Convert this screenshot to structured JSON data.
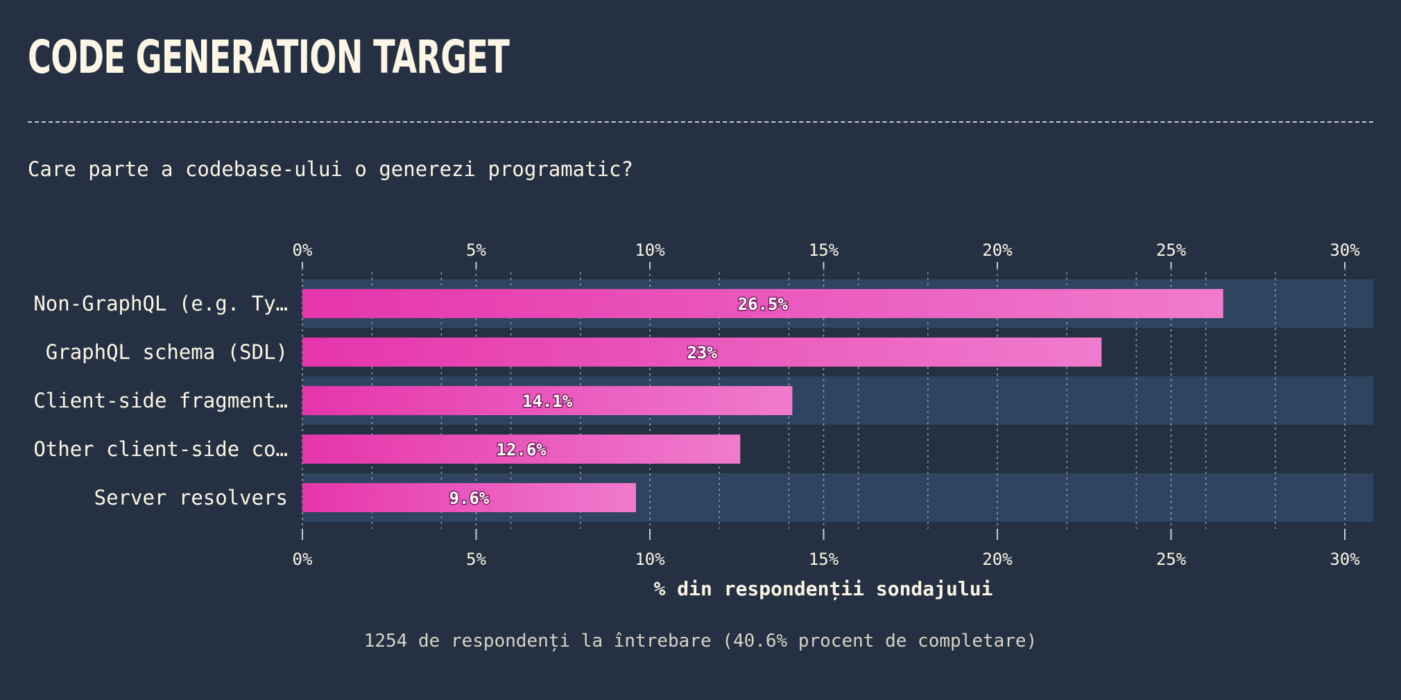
{
  "title": "CODE GENERATION TARGET",
  "question": "Care parte a codebase-ului o generezi programatic?",
  "footer": "1254 de respondenți la întrebare (40.6% procent de completare)",
  "colors": {
    "background": "#253142",
    "band": "#2e4461",
    "bar_start": "#e535ab",
    "bar_end": "#f07bcd",
    "text": "#fdf6e6"
  },
  "chart_data": {
    "type": "bar",
    "orientation": "horizontal",
    "categories": [
      "Non-GraphQL (e.g. Ty…",
      "GraphQL schema (SDL)",
      "Client-side fragment…",
      "Other client-side co…",
      "Server resolvers"
    ],
    "values": [
      26.5,
      23,
      14.1,
      12.6,
      9.6
    ],
    "value_labels": [
      "26.5%",
      "23%",
      "14.1%",
      "12.6%",
      "9.6%"
    ],
    "xlim": [
      0,
      30.8
    ],
    "ticks": [
      0,
      5,
      10,
      15,
      20,
      25,
      30
    ],
    "tick_labels": [
      "0%",
      "5%",
      "10%",
      "15%",
      "20%",
      "25%",
      "30%"
    ],
    "minor_ticks": [
      2,
      4,
      6,
      8,
      12,
      14,
      16,
      18,
      22,
      24,
      26,
      28
    ],
    "xlabel": "% din respondenții sondajului",
    "grid": true,
    "axis_position": "top and bottom"
  }
}
